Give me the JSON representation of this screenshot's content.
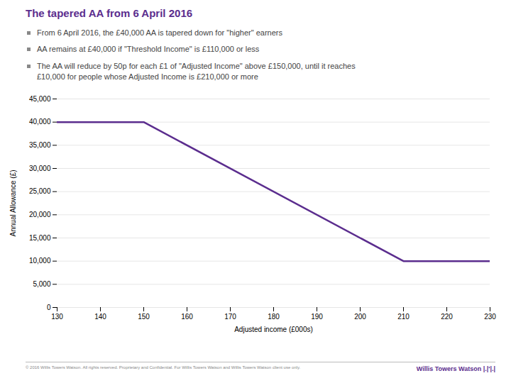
{
  "chart_data": {
    "type": "line",
    "title": "The tapered AA from 6 April 2016",
    "annotations": [
      "From 6 April 2016, the £40,000 AA is tapered down for \"higher\" earners",
      "AA remains at £40,000 if \"Threshold Income\" is £110,000 or less",
      "The AA will reduce by 50p for each £1 of \"Adjusted Income\" above £150,000, until it reaches\n£10,000 for people whose Adjusted Income is £210,000 or more"
    ],
    "footer": "© 2016 Willis Towers Watson. All rights reserved.  Proprietary and Confidential.  For Willis Towers Watson and Willis Towers Watson client use only.",
    "logo": "Willis Towers Watson  |.|'|.|",
    "x": [
      130,
      150,
      210,
      230
    ],
    "values": [
      40000,
      40000,
      10000,
      10000
    ],
    "color": "#5b2d8e",
    "xlabel": "Adjusted income (£000s)",
    "ylabel": "Annual Allowance (£)",
    "xlim": [
      130,
      230
    ],
    "ylim": [
      0,
      45000
    ],
    "xticks": [
      130,
      140,
      150,
      160,
      170,
      180,
      190,
      200,
      210,
      220,
      230
    ],
    "yticks": [
      0,
      {
        "value": 5000,
        "label": "5,000"
      },
      {
        "value": 10000,
        "label": "10,000"
      },
      {
        "value": 15000,
        "label": "15,000"
      },
      {
        "value": 20000,
        "label": "20,000"
      },
      {
        "value": 25000,
        "label": "25,000"
      },
      {
        "value": 30000,
        "label": "30,000"
      },
      {
        "value": 35000,
        "label": "35,000"
      },
      {
        "value": 40000,
        "label": "40,000"
      },
      {
        "value": 45000,
        "label": "45,000"
      }
    ],
    "grid": true
  }
}
